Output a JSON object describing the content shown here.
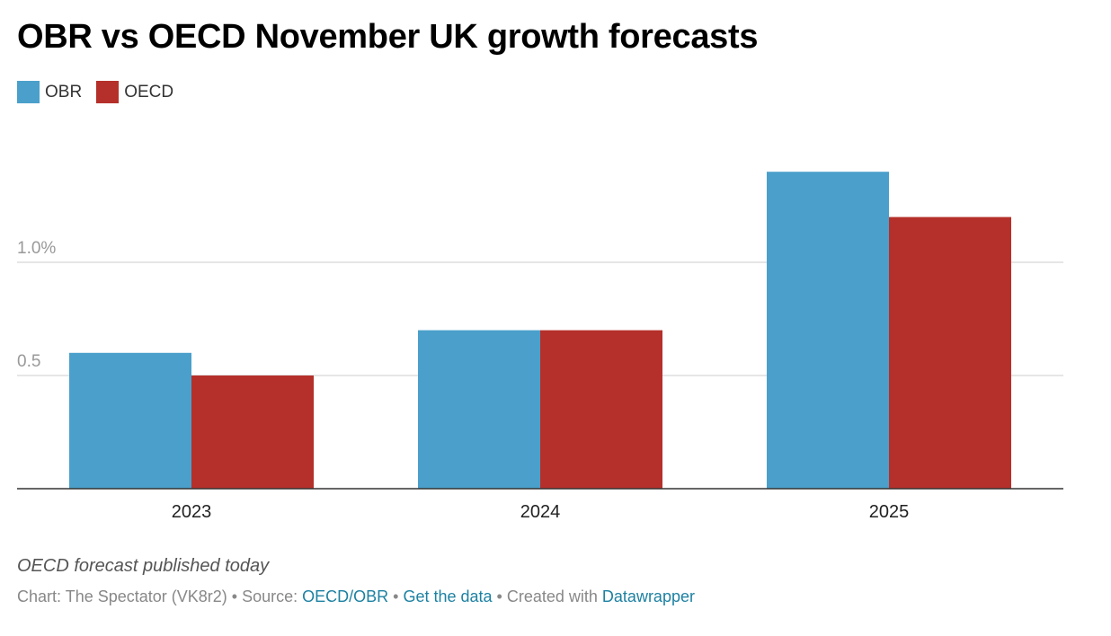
{
  "title": "OBR vs OECD November UK growth forecasts",
  "legend": [
    {
      "label": "OBR",
      "color": "#4aa0cb"
    },
    {
      "label": "OECD",
      "color": "#b5302a"
    }
  ],
  "note": "OECD forecast published today",
  "footer": {
    "chart_label": "Chart: The Spectator (VK8r2)",
    "sep1": " • ",
    "source_label": "Source: ",
    "source_link": "OECD/OBR",
    "sep2": " • ",
    "get_data": "Get the data",
    "sep3": " • ",
    "created_with": "Created with ",
    "datawrapper": "Datawrapper"
  },
  "chart_data": {
    "type": "bar",
    "categories": [
      "2023",
      "2024",
      "2025"
    ],
    "series": [
      {
        "name": "OBR",
        "values": [
          0.6,
          0.7,
          1.4
        ],
        "color": "#4aa0cb"
      },
      {
        "name": "OECD",
        "values": [
          0.5,
          0.7,
          1.2
        ],
        "color": "#b5302a"
      }
    ],
    "yticks": [
      {
        "value": 0.5,
        "label": "0.5"
      },
      {
        "value": 1.0,
        "label": "1.0%"
      }
    ],
    "ylim": [
      0,
      1.6
    ],
    "grid": true
  }
}
